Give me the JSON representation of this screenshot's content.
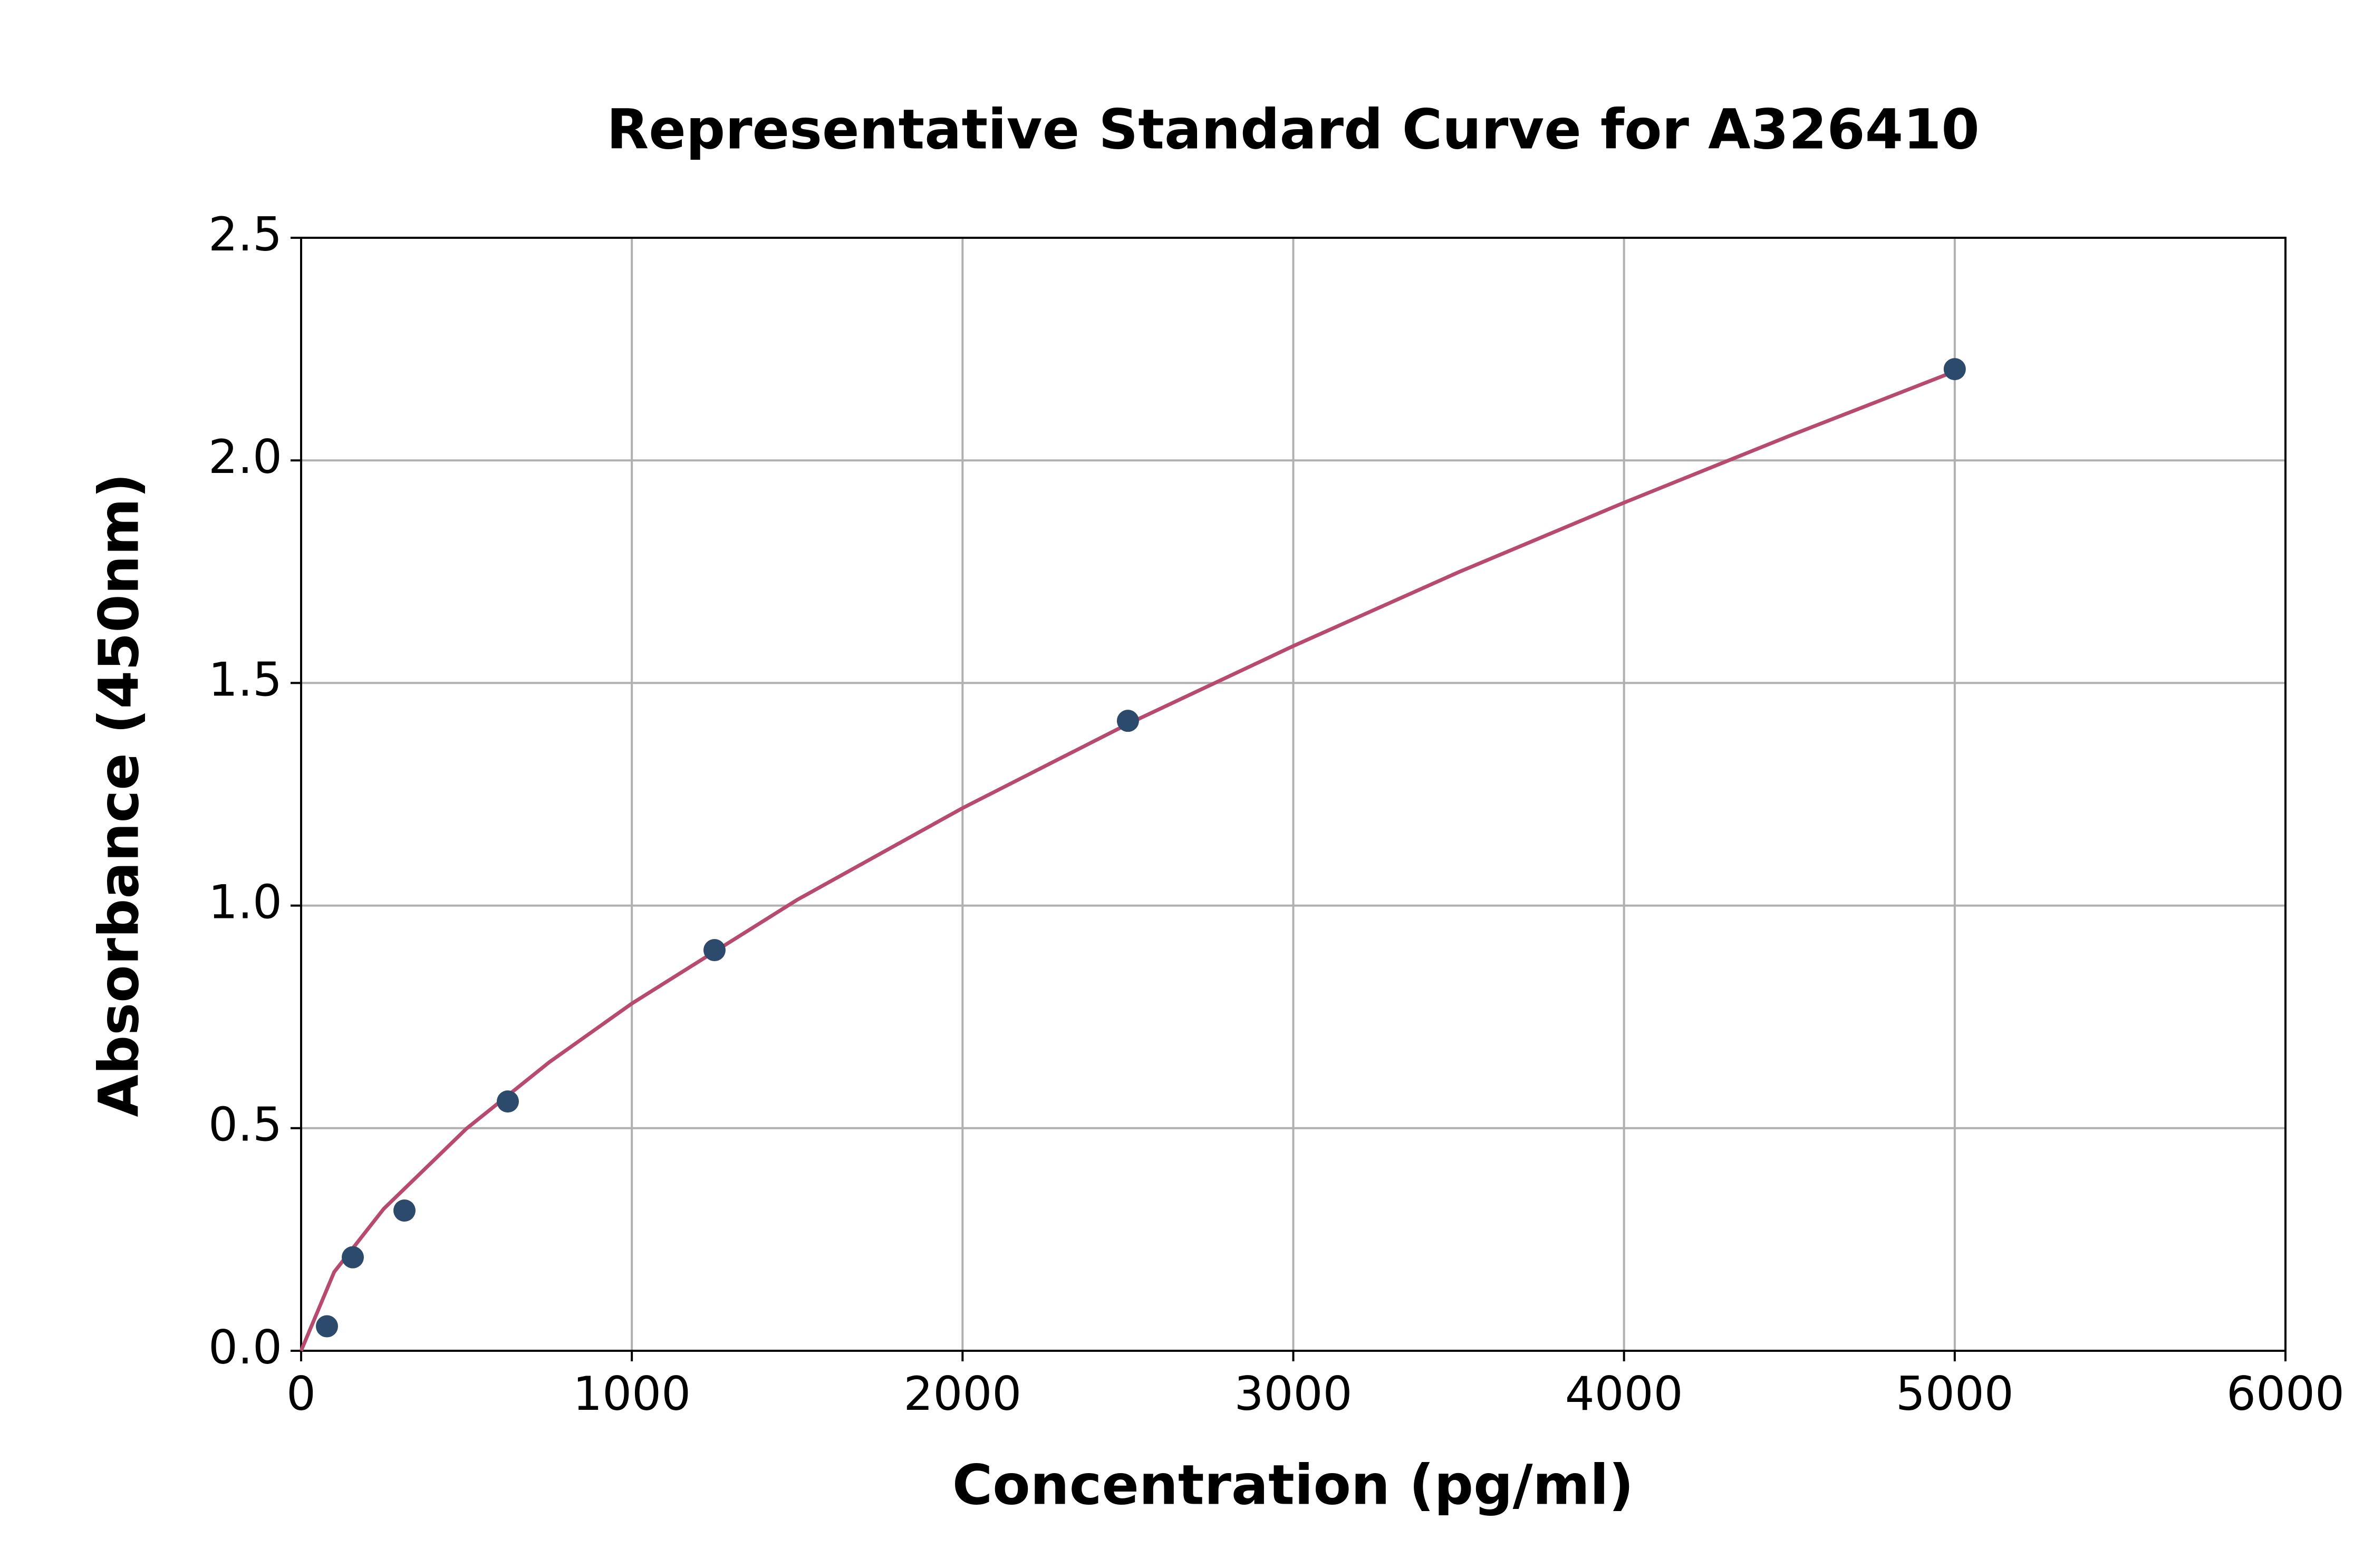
{
  "chart_data": {
    "type": "scatter",
    "title": "Representative Standard Curve for A326410",
    "x_label": "Concentration (pg/ml)",
    "y_label": "Absorbance (450nm)",
    "xlim": [
      0,
      6000
    ],
    "ylim": [
      0,
      2.5
    ],
    "xticks": [
      0,
      1000,
      2000,
      3000,
      4000,
      5000,
      6000
    ],
    "yticks": [
      {
        "value": 0,
        "label": "0.0"
      },
      0.5,
      {
        "value": 1,
        "label": "1.0"
      },
      1.5,
      {
        "value": 2,
        "label": "2.0"
      },
      2.5
    ],
    "grid": true,
    "series": [
      {
        "mode": "line",
        "color": "#b84a6f",
        "x": [
          0,
          100,
          250,
          500,
          750,
          1000,
          1500,
          2000,
          2500,
          3000,
          3500,
          4000,
          4500,
          5000
        ],
        "values": [
          0,
          0.177,
          0.319,
          0.499,
          0.648,
          0.78,
          1.013,
          1.219,
          1.408,
          1.583,
          1.749,
          1.905,
          2.055,
          2.2
        ]
      },
      {
        "mode": "markers",
        "color": "#2c4a6b",
        "x": [
          78.125,
          156.25,
          312.5,
          625,
          1250,
          2500,
          5000
        ],
        "values": [
          0.055,
          0.21,
          0.315,
          0.56,
          0.9,
          1.415,
          2.205
        ]
      }
    ]
  }
}
